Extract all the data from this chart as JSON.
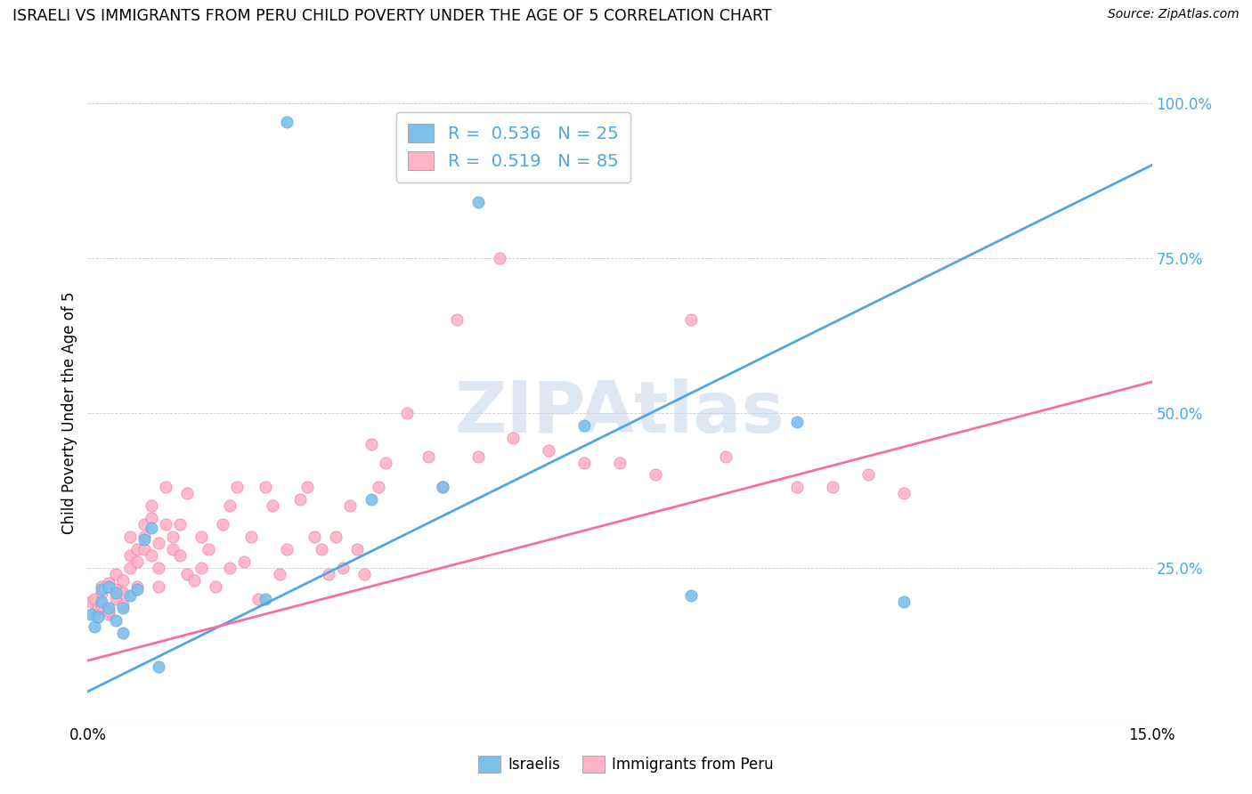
{
  "title": "ISRAELI VS IMMIGRANTS FROM PERU CHILD POVERTY UNDER THE AGE OF 5 CORRELATION CHART",
  "source": "Source: ZipAtlas.com",
  "ylabel": "Child Poverty Under the Age of 5",
  "xmin": 0.0,
  "xmax": 0.15,
  "ymin": 0.0,
  "ymax": 1.0,
  "blue_color": "#7fbfea",
  "pink_color": "#ffb3c6",
  "blue_line_color": "#4da6e8",
  "pink_line_color": "#f76fa0",
  "legend_R1": "0.536",
  "legend_N1": "25",
  "legend_R2": "0.519",
  "legend_N2": "85",
  "watermark": "ZIPAtlas",
  "watermark_color": "#c8d8ea",
  "blue_line_x0": 0.0,
  "blue_line_y0": 0.05,
  "blue_line_x1": 0.15,
  "blue_line_y1": 0.9,
  "pink_line_x0": 0.0,
  "pink_line_y0": 0.1,
  "pink_line_x1": 0.15,
  "pink_line_y1": 0.55,
  "israelis_x": [
    0.0005,
    0.001,
    0.0015,
    0.002,
    0.002,
    0.003,
    0.003,
    0.004,
    0.004,
    0.005,
    0.005,
    0.006,
    0.007,
    0.008,
    0.009,
    0.01,
    0.025,
    0.028,
    0.04,
    0.05,
    0.055,
    0.07,
    0.085,
    0.1,
    0.115
  ],
  "israelis_y": [
    0.175,
    0.155,
    0.17,
    0.195,
    0.215,
    0.185,
    0.22,
    0.165,
    0.21,
    0.145,
    0.185,
    0.205,
    0.215,
    0.295,
    0.315,
    0.09,
    0.2,
    0.97,
    0.36,
    0.38,
    0.84,
    0.48,
    0.205,
    0.485,
    0.195
  ],
  "peru_x": [
    0.0005,
    0.001,
    0.001,
    0.0015,
    0.002,
    0.002,
    0.002,
    0.003,
    0.003,
    0.003,
    0.004,
    0.004,
    0.004,
    0.005,
    0.005,
    0.005,
    0.006,
    0.006,
    0.006,
    0.007,
    0.007,
    0.007,
    0.008,
    0.008,
    0.008,
    0.009,
    0.009,
    0.009,
    0.01,
    0.01,
    0.01,
    0.011,
    0.011,
    0.012,
    0.012,
    0.013,
    0.013,
    0.014,
    0.014,
    0.015,
    0.016,
    0.016,
    0.017,
    0.018,
    0.019,
    0.02,
    0.02,
    0.021,
    0.022,
    0.023,
    0.024,
    0.025,
    0.026,
    0.027,
    0.028,
    0.03,
    0.031,
    0.032,
    0.033,
    0.034,
    0.035,
    0.036,
    0.037,
    0.038,
    0.039,
    0.04,
    0.041,
    0.042,
    0.045,
    0.048,
    0.05,
    0.052,
    0.055,
    0.058,
    0.06,
    0.065,
    0.07,
    0.075,
    0.08,
    0.085,
    0.09,
    0.1,
    0.105,
    0.11,
    0.115
  ],
  "peru_y": [
    0.195,
    0.175,
    0.2,
    0.185,
    0.22,
    0.19,
    0.21,
    0.175,
    0.225,
    0.18,
    0.215,
    0.2,
    0.24,
    0.19,
    0.23,
    0.21,
    0.27,
    0.25,
    0.3,
    0.28,
    0.26,
    0.22,
    0.32,
    0.3,
    0.28,
    0.35,
    0.33,
    0.27,
    0.22,
    0.25,
    0.29,
    0.32,
    0.38,
    0.28,
    0.3,
    0.27,
    0.32,
    0.24,
    0.37,
    0.23,
    0.25,
    0.3,
    0.28,
    0.22,
    0.32,
    0.35,
    0.25,
    0.38,
    0.26,
    0.3,
    0.2,
    0.38,
    0.35,
    0.24,
    0.28,
    0.36,
    0.38,
    0.3,
    0.28,
    0.24,
    0.3,
    0.25,
    0.35,
    0.28,
    0.24,
    0.45,
    0.38,
    0.42,
    0.5,
    0.43,
    0.38,
    0.65,
    0.43,
    0.75,
    0.46,
    0.44,
    0.42,
    0.42,
    0.4,
    0.65,
    0.43,
    0.38,
    0.38,
    0.4,
    0.37
  ]
}
